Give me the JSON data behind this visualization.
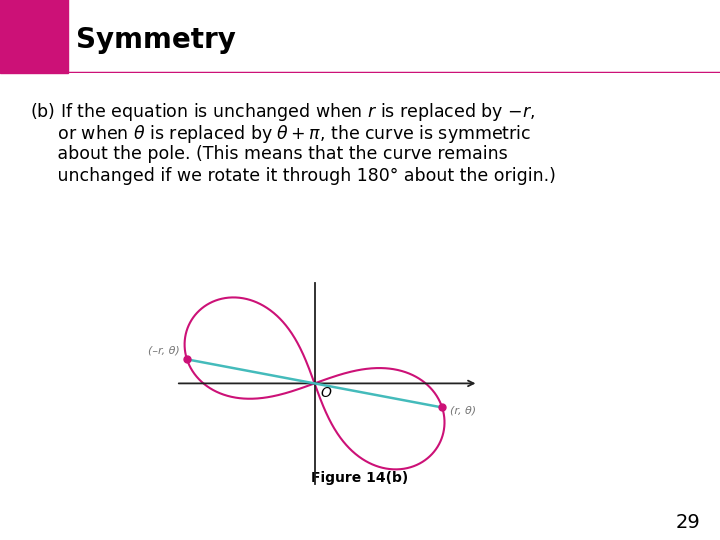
{
  "title": "Symmetry",
  "title_bg_color": "#cccccc",
  "title_accent_color": "#cc1177",
  "body_text_line1": "(b) If the equation is unchanged when ",
  "body_text_r": "r",
  "body_text_line1b": " is replaced by –",
  "body_text_r2": "r",
  "body_text_line1c": ",",
  "figure_label": "Figure 14(b)",
  "page_number": "29",
  "curve_color": "#cc1177",
  "line_color": "#44bbbb",
  "dot_color": "#cc1177",
  "axis_color": "#222222",
  "bg_color": "#ffffff",
  "r_theta_label": "(r, θ)",
  "neg_r_theta_label": "(–r, θ)"
}
